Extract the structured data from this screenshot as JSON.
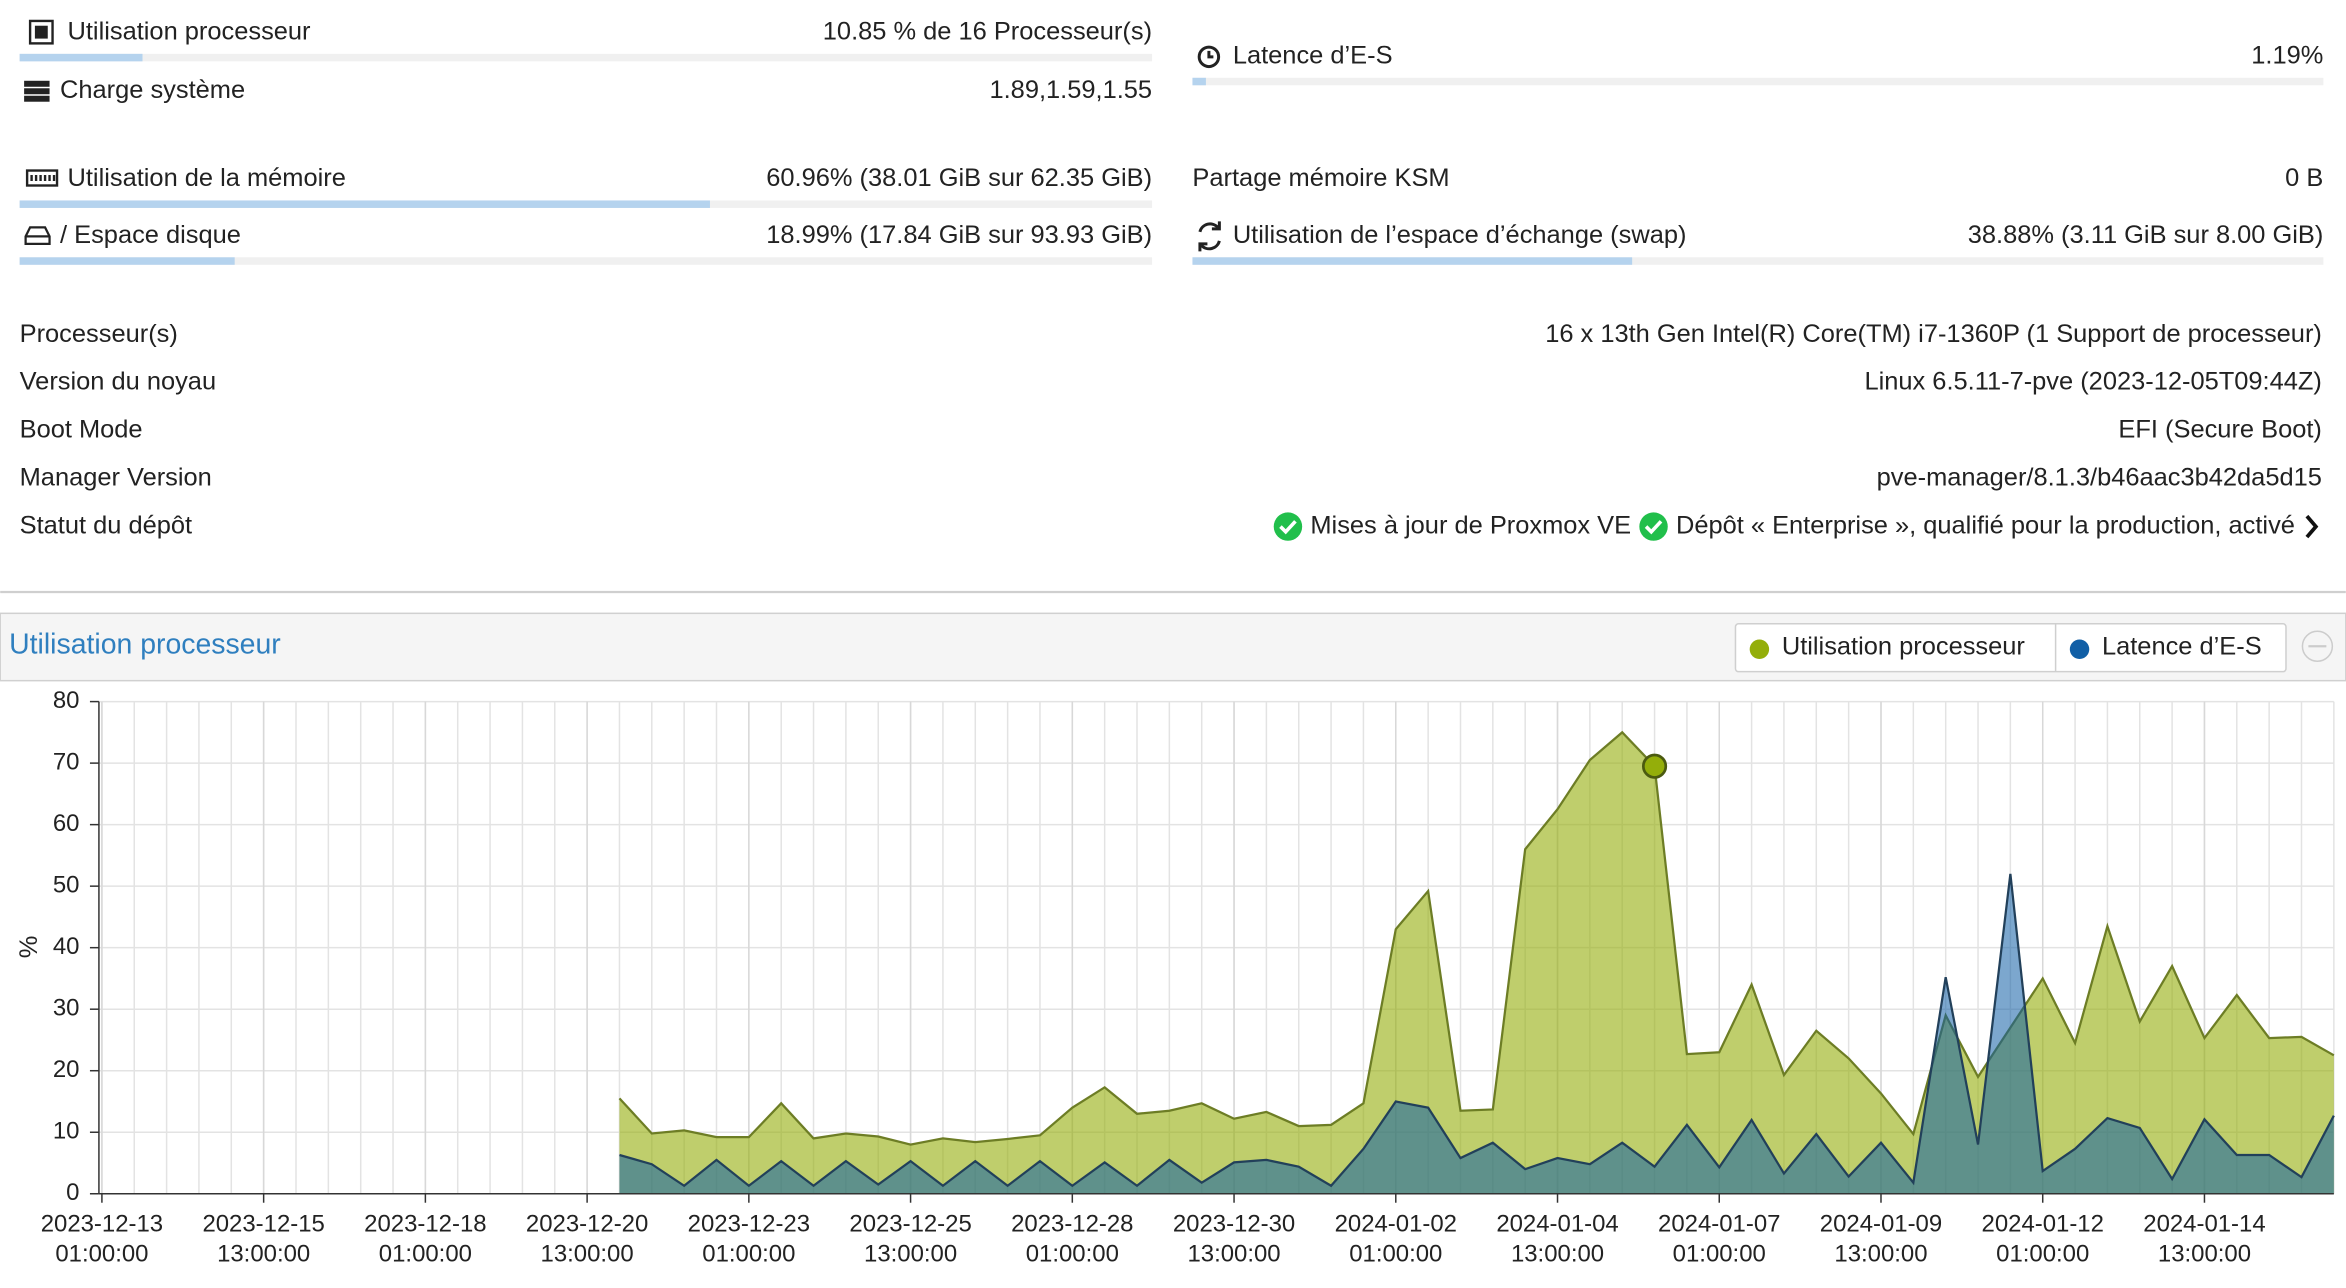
{
  "summary": {
    "left": [
      {
        "label": "Utilisation processeur",
        "value": "10.85 % de 16 Processeur(s)",
        "percent": 10.85
      },
      {
        "label": "Charge système",
        "value": "1.89,1.59,1.55"
      },
      {
        "label": "Utilisation de la mémoire",
        "value": "60.96% (38.01 GiB sur 62.35 GiB)",
        "percent": 60.96
      },
      {
        "label": "/ Espace disque",
        "value": "18.99% (17.84 GiB sur 93.93 GiB)",
        "percent": 18.99
      }
    ],
    "right": [
      {
        "label": "Latence d’E-S",
        "value": "1.19%",
        "percent": 1.19
      },
      {
        "label": "Partage mémoire KSM",
        "value": "0 B"
      },
      {
        "label": "Utilisation de l’espace d’échange (swap)",
        "value": "38.88% (3.11 GiB sur 8.00 GiB)",
        "percent": 38.88
      }
    ]
  },
  "info": [
    {
      "label": "Processeur(s)",
      "value": "16 x 13th Gen Intel(R) Core(TM) i7-1360P (1 Support de processeur)"
    },
    {
      "label": "Version du noyau",
      "value": "Linux 6.5.11-7-pve (2023-12-05T09:44Z)"
    },
    {
      "label": "Boot Mode",
      "value": "EFI (Secure Boot)"
    },
    {
      "label": "Manager Version",
      "value": "pve-manager/8.1.3/b46aac3b42da5d15"
    }
  ],
  "repository": {
    "label": "Statut du dépôt",
    "items": [
      "Mises à jour de Proxmox VE",
      "Dépôt « Enterprise », qualifié pour la production, activé"
    ]
  },
  "chart_data": {
    "type": "area",
    "title": "Utilisation processeur",
    "y_label": "%",
    "xlim": [
      "2023-12-13T01:00:00",
      "2024-01-16T13:00:00"
    ],
    "xticks": [
      {
        "date": "2023-12-13",
        "time": "01:00:00"
      },
      {
        "date": "2023-12-15",
        "time": "13:00:00"
      },
      {
        "date": "2023-12-18",
        "time": "01:00:00"
      },
      {
        "date": "2023-12-20",
        "time": "13:00:00"
      },
      {
        "date": "2023-12-23",
        "time": "01:00:00"
      },
      {
        "date": "2023-12-25",
        "time": "13:00:00"
      },
      {
        "date": "2023-12-28",
        "time": "01:00:00"
      },
      {
        "date": "2023-12-30",
        "time": "13:00:00"
      },
      {
        "date": "2024-01-02",
        "time": "01:00:00"
      },
      {
        "date": "2024-01-04",
        "time": "13:00:00"
      },
      {
        "date": "2024-01-07",
        "time": "01:00:00"
      },
      {
        "date": "2024-01-09",
        "time": "13:00:00"
      },
      {
        "date": "2024-01-12",
        "time": "01:00:00"
      },
      {
        "date": "2024-01-14",
        "time": "13:00:00"
      }
    ],
    "ylim": [
      0,
      80
    ],
    "yticks": [
      0,
      10,
      20,
      30,
      40,
      50,
      60,
      70,
      80
    ],
    "grid": true,
    "x": [
      "2023-12-21T01:00:00",
      "2023-12-21T13:00:00",
      "2023-12-22T01:00:00",
      "2023-12-22T13:00:00",
      "2023-12-23T01:00:00",
      "2023-12-23T13:00:00",
      "2023-12-24T01:00:00",
      "2023-12-24T13:00:00",
      "2023-12-25T01:00:00",
      "2023-12-25T13:00:00",
      "2023-12-26T01:00:00",
      "2023-12-26T13:00:00",
      "2023-12-27T01:00:00",
      "2023-12-27T13:00:00",
      "2023-12-28T01:00:00",
      "2023-12-28T13:00:00",
      "2023-12-29T01:00:00",
      "2023-12-29T13:00:00",
      "2023-12-30T01:00:00",
      "2023-12-30T13:00:00",
      "2023-12-31T01:00:00",
      "2023-12-31T13:00:00",
      "2024-01-01T01:00:00",
      "2024-01-01T13:00:00",
      "2024-01-02T01:00:00",
      "2024-01-02T13:00:00",
      "2024-01-03T01:00:00",
      "2024-01-03T13:00:00",
      "2024-01-04T01:00:00",
      "2024-01-04T13:00:00",
      "2024-01-05T01:00:00",
      "2024-01-05T13:00:00",
      "2024-01-06T01:00:00",
      "2024-01-06T13:00:00",
      "2024-01-07T01:00:00",
      "2024-01-07T13:00:00",
      "2024-01-08T01:00:00",
      "2024-01-08T13:00:00",
      "2024-01-09T01:00:00",
      "2024-01-09T13:00:00",
      "2024-01-10T01:00:00",
      "2024-01-10T13:00:00",
      "2024-01-11T01:00:00",
      "2024-01-11T13:00:00",
      "2024-01-12T01:00:00",
      "2024-01-12T13:00:00",
      "2024-01-13T01:00:00",
      "2024-01-13T13:00:00",
      "2024-01-14T01:00:00",
      "2024-01-14T13:00:00",
      "2024-01-15T01:00:00",
      "2024-01-15T13:00:00",
      "2024-01-16T01:00:00",
      "2024-01-16T13:00:00"
    ],
    "series": [
      {
        "name": "Utilisation processeur",
        "color": "#94ae0a",
        "values": [
          15.5,
          9.8,
          10.3,
          9.2,
          9.2,
          14.7,
          9,
          9.8,
          9.3,
          8,
          9,
          8.4,
          8.9,
          9.5,
          14,
          17.3,
          13,
          13.5,
          14.7,
          12.2,
          13.3,
          11,
          11.2,
          14.7,
          43,
          49.2,
          13.5,
          13.7,
          56,
          62.5,
          70.5,
          75,
          69.5,
          22.7,
          23,
          34,
          19.3,
          26.5,
          22,
          16.3,
          9.7,
          29,
          19,
          27,
          35,
          24.5,
          43.5,
          28,
          37,
          25.3,
          32.3,
          25.3,
          25.5,
          22.5
        ]
      },
      {
        "name": "Latence d’E-S",
        "color": "#115fa6",
        "values": [
          6.3,
          4.8,
          1.3,
          5.5,
          1.3,
          5.3,
          1.3,
          5.3,
          1.5,
          5.3,
          1.3,
          5.3,
          1.3,
          5.3,
          1.3,
          5.1,
          1.3,
          5.5,
          1.8,
          5.1,
          5.5,
          4.4,
          1.3,
          7.3,
          15,
          14,
          5.8,
          8.3,
          4,
          5.8,
          4.8,
          8.3,
          4.4,
          11.2,
          4.3,
          12,
          3.3,
          9.7,
          2.8,
          8.3,
          1.8,
          35.2,
          8,
          52,
          3.7,
          7.3,
          12.3,
          10.7,
          2.4,
          12.1,
          6.3,
          6.3,
          2.7,
          12.7
        ]
      }
    ],
    "highlight": {
      "series": 0,
      "index": 32
    }
  }
}
